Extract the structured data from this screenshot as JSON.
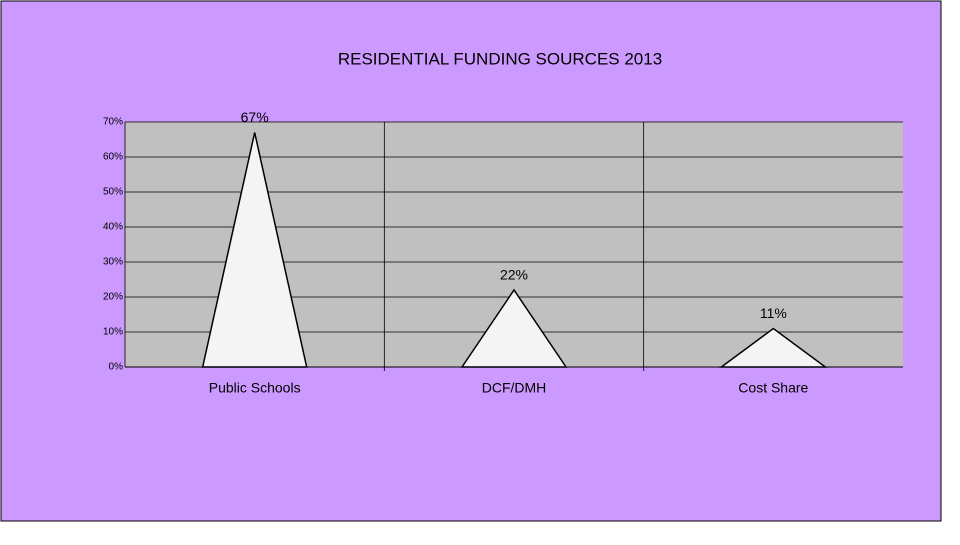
{
  "chart_data": {
    "type": "bar",
    "title": "RESIDENTIAL FUNDING SOURCES 2013",
    "categories": [
      "Public Schools",
      "DCF/DMH",
      "Cost Share"
    ],
    "values": [
      67,
      22,
      11
    ],
    "value_labels": [
      "67%",
      "22%",
      "11%"
    ],
    "color": "#f4f4f4",
    "ylim": [
      0,
      70
    ],
    "yticks": [
      {
        "value": 0,
        "label": "0%"
      },
      {
        "value": 10,
        "label": "10%"
      },
      {
        "value": 20,
        "label": "20%"
      },
      {
        "value": 30,
        "label": "30%"
      },
      {
        "value": 40,
        "label": "40%"
      },
      {
        "value": 50,
        "label": "50%"
      },
      {
        "value": 60,
        "label": "60%"
      },
      {
        "value": 70,
        "label": "70%"
      }
    ],
    "grid": true
  }
}
